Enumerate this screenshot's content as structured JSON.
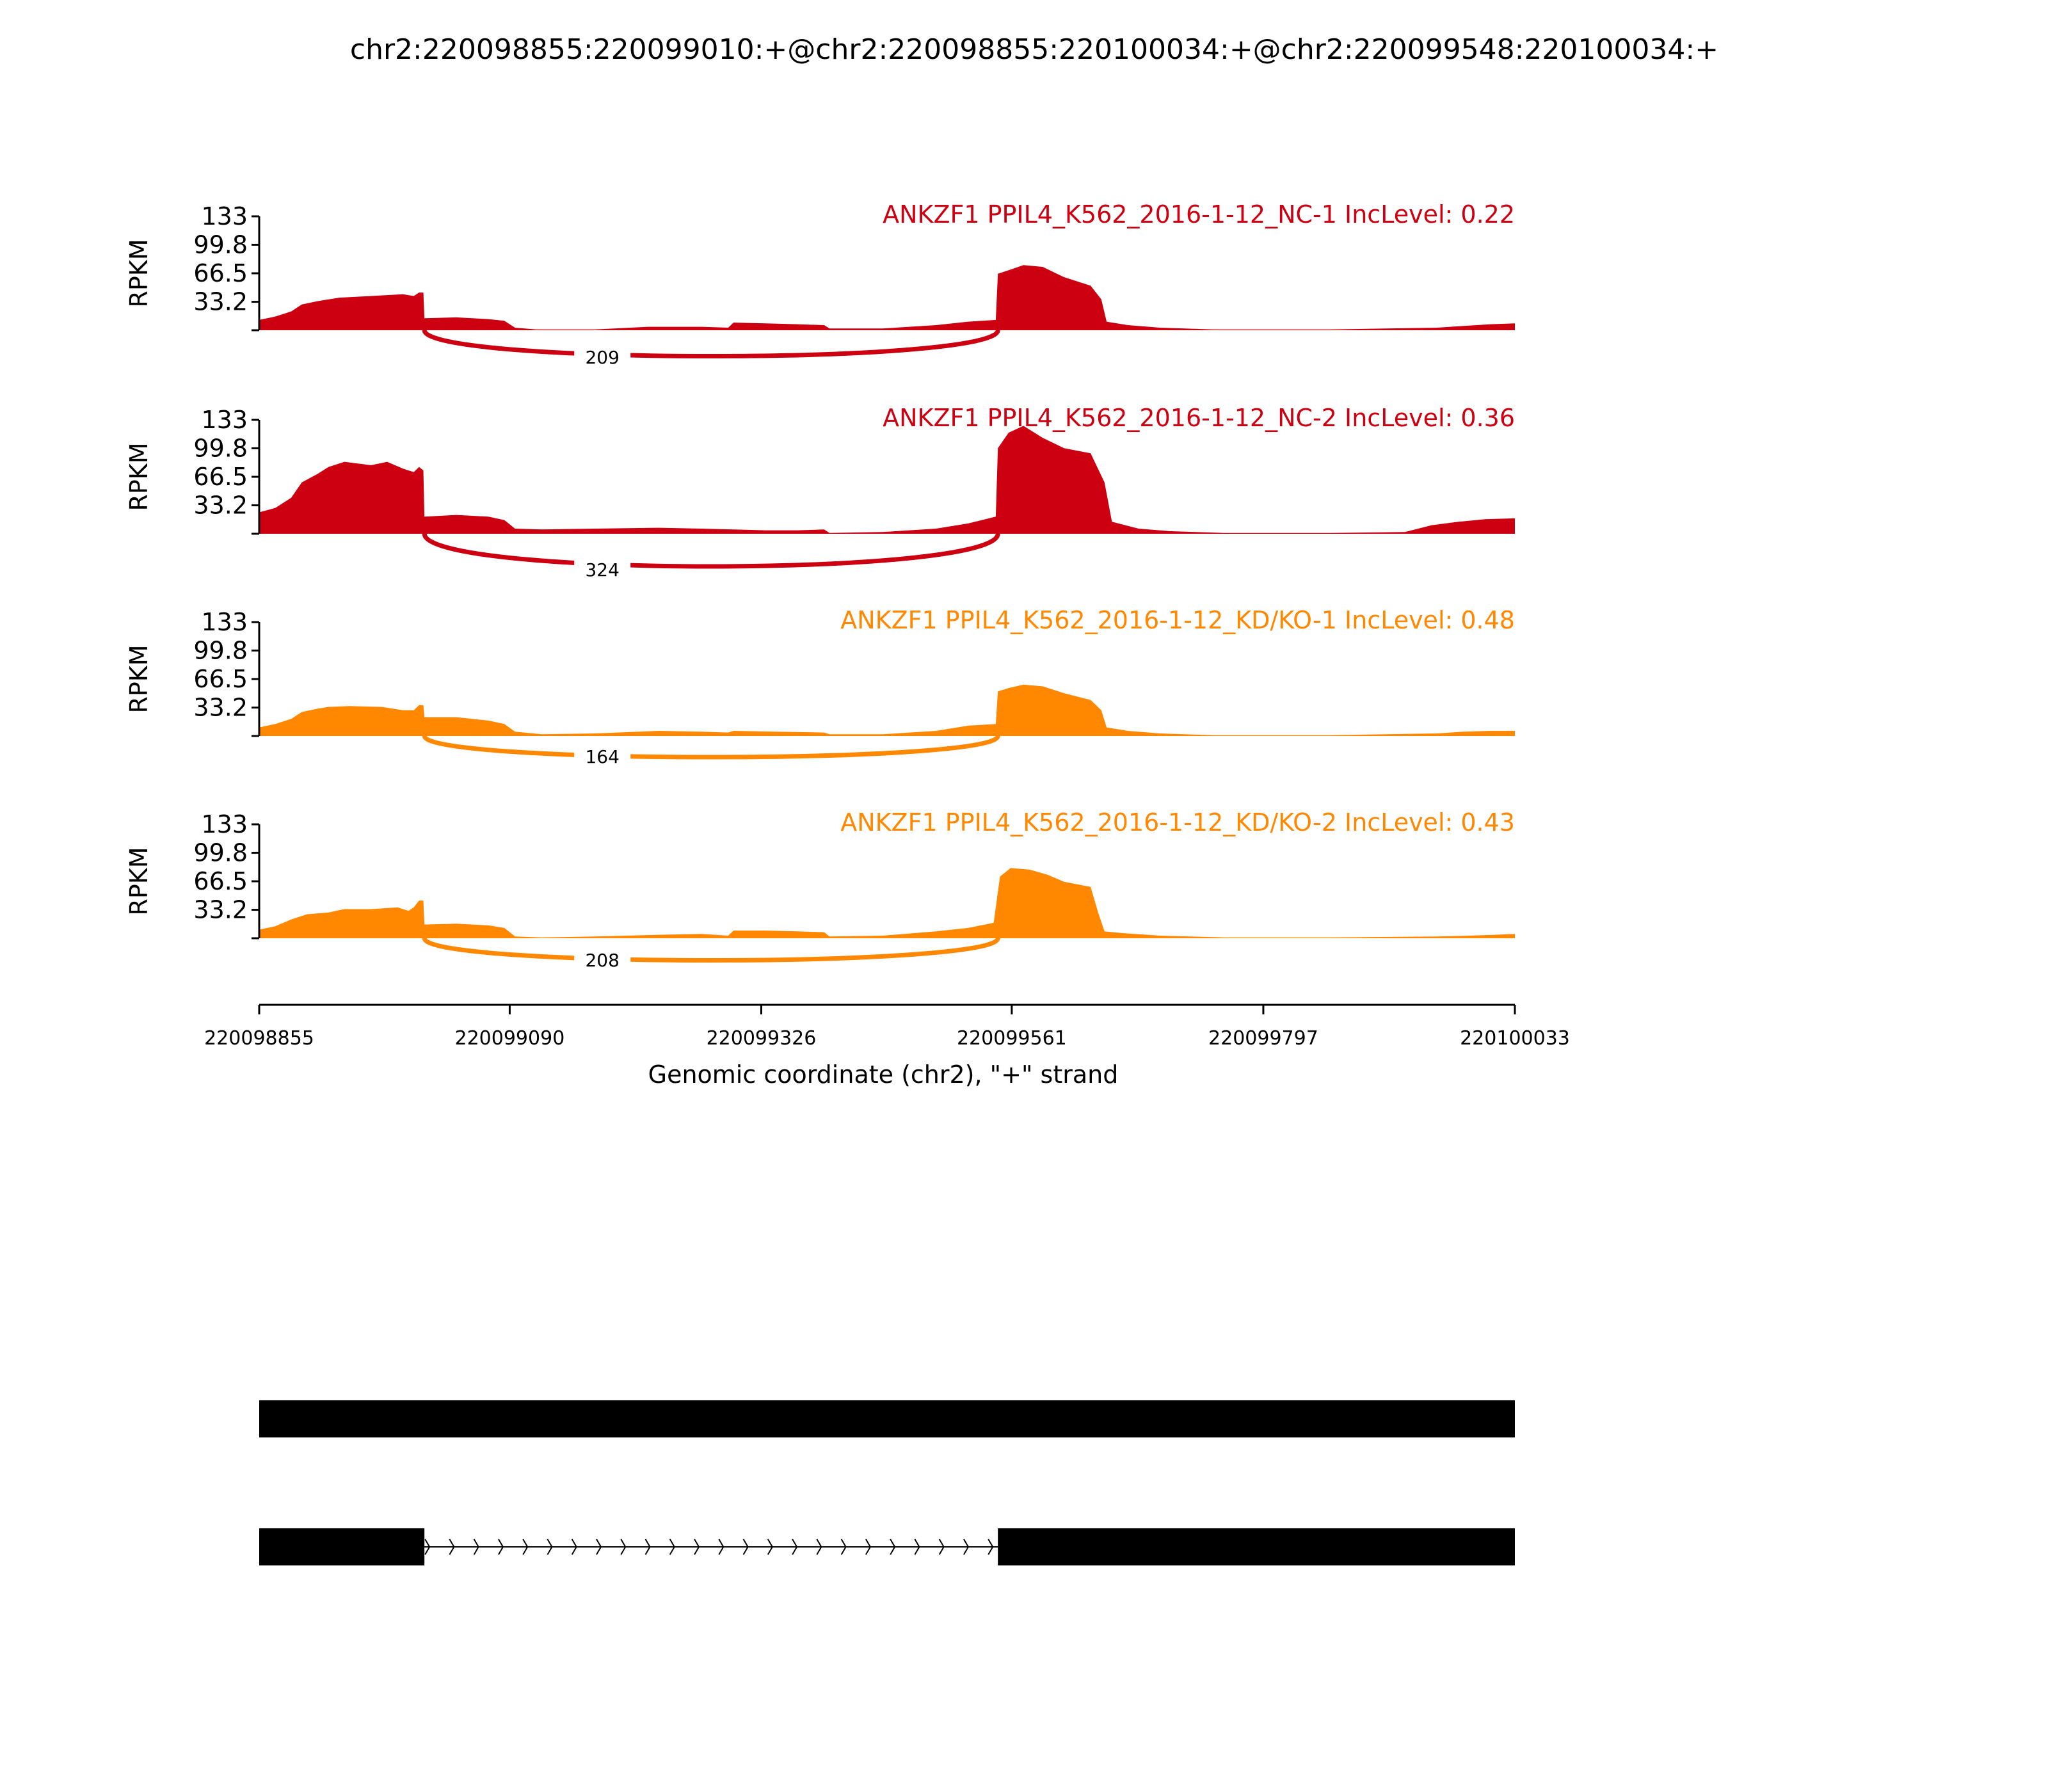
{
  "figure": {
    "title": "chr2:220098855:220099010:+@chr2:220098855:220100034:+@chr2:220099548:220100034:+"
  },
  "chart_data": {
    "type": "area",
    "title": "chr2:220098855:220099010:+@chr2:220098855:220100034:+@chr2:220099548:220100034:+",
    "ylabel": "RPKM",
    "xlabel": "Genomic coordinate (chr2), \"+\" strand",
    "yticks": [
      "33.2",
      "66.5",
      "99.8",
      "133"
    ],
    "ylim": [
      0,
      133
    ],
    "xticks": [
      "220098855",
      "220099090",
      "220099326",
      "220099561",
      "220099797",
      "220100033"
    ],
    "xlim": [
      220098855,
      220100033
    ],
    "grid": false,
    "colors": {
      "NC": "#cc0011",
      "KD": "#ff8800"
    },
    "series": [
      {
        "name": "ANKZF1 PPIL4_K562_2016-1-12_NC-1 IncLevel: 0.22",
        "group": "NC",
        "junction": {
          "start": 220099010,
          "end": 220099548,
          "reads": "209"
        },
        "coverage": [
          [
            220098855,
            12
          ],
          [
            220098870,
            16
          ],
          [
            220098885,
            22
          ],
          [
            220098895,
            30
          ],
          [
            220098910,
            34
          ],
          [
            220098920,
            36
          ],
          [
            220098930,
            38
          ],
          [
            220098960,
            40
          ],
          [
            220098990,
            42
          ],
          [
            220099000,
            40
          ],
          [
            220099005,
            44
          ],
          [
            220099009,
            44
          ],
          [
            220099010,
            14
          ],
          [
            220099040,
            15
          ],
          [
            220099070,
            13
          ],
          [
            220099085,
            11
          ],
          [
            220099095,
            3
          ],
          [
            220099115,
            1
          ],
          [
            220099170,
            1
          ],
          [
            220099220,
            4
          ],
          [
            220099270,
            4
          ],
          [
            220099295,
            3
          ],
          [
            220099300,
            9
          ],
          [
            220099330,
            8
          ],
          [
            220099360,
            7
          ],
          [
            220099385,
            6
          ],
          [
            220099390,
            2
          ],
          [
            220099440,
            2
          ],
          [
            220099490,
            6
          ],
          [
            220099520,
            10
          ],
          [
            220099546,
            12
          ],
          [
            220099548,
            66
          ],
          [
            220099558,
            70
          ],
          [
            220099572,
            76
          ],
          [
            220099590,
            74
          ],
          [
            220099610,
            62
          ],
          [
            220099635,
            52
          ],
          [
            220099645,
            36
          ],
          [
            220099650,
            10
          ],
          [
            220099670,
            6
          ],
          [
            220099700,
            3
          ],
          [
            220099750,
            1
          ],
          [
            220099860,
            1
          ],
          [
            220099960,
            3
          ],
          [
            220099985,
            5
          ],
          [
            220100010,
            7
          ],
          [
            220100033,
            8
          ]
        ]
      },
      {
        "name": "ANKZF1 PPIL4_K562_2016-1-12_NC-2 IncLevel: 0.36",
        "group": "NC",
        "junction": {
          "start": 220099010,
          "end": 220099548,
          "reads": "324"
        },
        "coverage": [
          [
            220098855,
            25
          ],
          [
            220098870,
            30
          ],
          [
            220098885,
            42
          ],
          [
            220098895,
            60
          ],
          [
            220098910,
            70
          ],
          [
            220098920,
            78
          ],
          [
            220098935,
            84
          ],
          [
            220098960,
            80
          ],
          [
            220098975,
            84
          ],
          [
            220098990,
            76
          ],
          [
            220099000,
            72
          ],
          [
            220099005,
            78
          ],
          [
            220099009,
            74
          ],
          [
            220099010,
            20
          ],
          [
            220099040,
            22
          ],
          [
            220099070,
            20
          ],
          [
            220099085,
            16
          ],
          [
            220099095,
            6
          ],
          [
            220099120,
            5
          ],
          [
            220099170,
            6
          ],
          [
            220099230,
            7
          ],
          [
            220099270,
            6
          ],
          [
            220099300,
            5
          ],
          [
            220099330,
            4
          ],
          [
            220099360,
            4
          ],
          [
            220099385,
            5
          ],
          [
            220099390,
            1
          ],
          [
            220099440,
            2
          ],
          [
            220099490,
            6
          ],
          [
            220099520,
            12
          ],
          [
            220099546,
            20
          ],
          [
            220099548,
            100
          ],
          [
            220099558,
            118
          ],
          [
            220099572,
            126
          ],
          [
            220099590,
            112
          ],
          [
            220099610,
            100
          ],
          [
            220099635,
            94
          ],
          [
            220099648,
            60
          ],
          [
            220099655,
            14
          ],
          [
            220099680,
            6
          ],
          [
            220099710,
            3
          ],
          [
            220099760,
            1
          ],
          [
            220099860,
            1
          ],
          [
            220099930,
            2
          ],
          [
            220099955,
            10
          ],
          [
            220099980,
            14
          ],
          [
            220100005,
            17
          ],
          [
            220100033,
            18
          ]
        ]
      },
      {
        "name": "ANKZF1 PPIL4_K562_2016-1-12_KD/KO-1 IncLevel: 0.48",
        "group": "KD",
        "junction": {
          "start": 220099010,
          "end": 220099548,
          "reads": "164"
        },
        "coverage": [
          [
            220098855,
            10
          ],
          [
            220098870,
            14
          ],
          [
            220098885,
            20
          ],
          [
            220098895,
            28
          ],
          [
            220098910,
            32
          ],
          [
            220098920,
            34
          ],
          [
            220098940,
            35
          ],
          [
            220098970,
            34
          ],
          [
            220098990,
            30
          ],
          [
            220099000,
            30
          ],
          [
            220099005,
            36
          ],
          [
            220099009,
            36
          ],
          [
            220099010,
            22
          ],
          [
            220099040,
            22
          ],
          [
            220099070,
            18
          ],
          [
            220099085,
            14
          ],
          [
            220099095,
            5
          ],
          [
            220099120,
            2
          ],
          [
            220099170,
            3
          ],
          [
            220099230,
            6
          ],
          [
            220099270,
            5
          ],
          [
            220099295,
            4
          ],
          [
            220099300,
            6
          ],
          [
            220099340,
            5
          ],
          [
            220099385,
            4
          ],
          [
            220099390,
            2
          ],
          [
            220099440,
            2
          ],
          [
            220099490,
            6
          ],
          [
            220099520,
            12
          ],
          [
            220099546,
            14
          ],
          [
            220099548,
            52
          ],
          [
            220099558,
            56
          ],
          [
            220099572,
            60
          ],
          [
            220099590,
            58
          ],
          [
            220099610,
            50
          ],
          [
            220099635,
            42
          ],
          [
            220099645,
            30
          ],
          [
            220099650,
            10
          ],
          [
            220099670,
            6
          ],
          [
            220099700,
            3
          ],
          [
            220099750,
            1
          ],
          [
            220099860,
            1
          ],
          [
            220099960,
            3
          ],
          [
            220099985,
            5
          ],
          [
            220100010,
            6
          ],
          [
            220100033,
            6
          ]
        ]
      },
      {
        "name": "ANKZF1 PPIL4_K562_2016-1-12_KD/KO-2 IncLevel: 0.43",
        "group": "KD",
        "junction": {
          "start": 220099010,
          "end": 220099548,
          "reads": "208"
        },
        "coverage": [
          [
            220098855,
            10
          ],
          [
            220098870,
            14
          ],
          [
            220098885,
            22
          ],
          [
            220098900,
            28
          ],
          [
            220098920,
            30
          ],
          [
            220098935,
            34
          ],
          [
            220098960,
            34
          ],
          [
            220098985,
            36
          ],
          [
            220098995,
            32
          ],
          [
            220099000,
            36
          ],
          [
            220099005,
            44
          ],
          [
            220099009,
            44
          ],
          [
            220099010,
            16
          ],
          [
            220099040,
            17
          ],
          [
            220099070,
            15
          ],
          [
            220099085,
            12
          ],
          [
            220099095,
            2
          ],
          [
            220099120,
            1
          ],
          [
            220099170,
            2
          ],
          [
            220099230,
            4
          ],
          [
            220099270,
            5
          ],
          [
            220099295,
            3
          ],
          [
            220099300,
            9
          ],
          [
            220099330,
            9
          ],
          [
            220099360,
            8
          ],
          [
            220099385,
            7
          ],
          [
            220099390,
            2
          ],
          [
            220099440,
            3
          ],
          [
            220099490,
            8
          ],
          [
            220099520,
            12
          ],
          [
            220099544,
            18
          ],
          [
            220099546,
            36
          ],
          [
            220099550,
            72
          ],
          [
            220099560,
            82
          ],
          [
            220099578,
            80
          ],
          [
            220099595,
            74
          ],
          [
            220099610,
            66
          ],
          [
            220099635,
            60
          ],
          [
            220099642,
            30
          ],
          [
            220099648,
            8
          ],
          [
            220099665,
            6
          ],
          [
            220099700,
            3
          ],
          [
            220099760,
            1
          ],
          [
            220099860,
            1
          ],
          [
            220099960,
            2
          ],
          [
            220099990,
            3
          ],
          [
            220100015,
            4
          ],
          [
            220100033,
            5
          ]
        ]
      }
    ],
    "isoforms": [
      {
        "exons": [
          [
            220098855,
            220100033
          ]
        ]
      },
      {
        "exons": [
          [
            220098855,
            220099010
          ],
          [
            220099548,
            220100033
          ]
        ],
        "intron_arrows": true
      }
    ]
  }
}
